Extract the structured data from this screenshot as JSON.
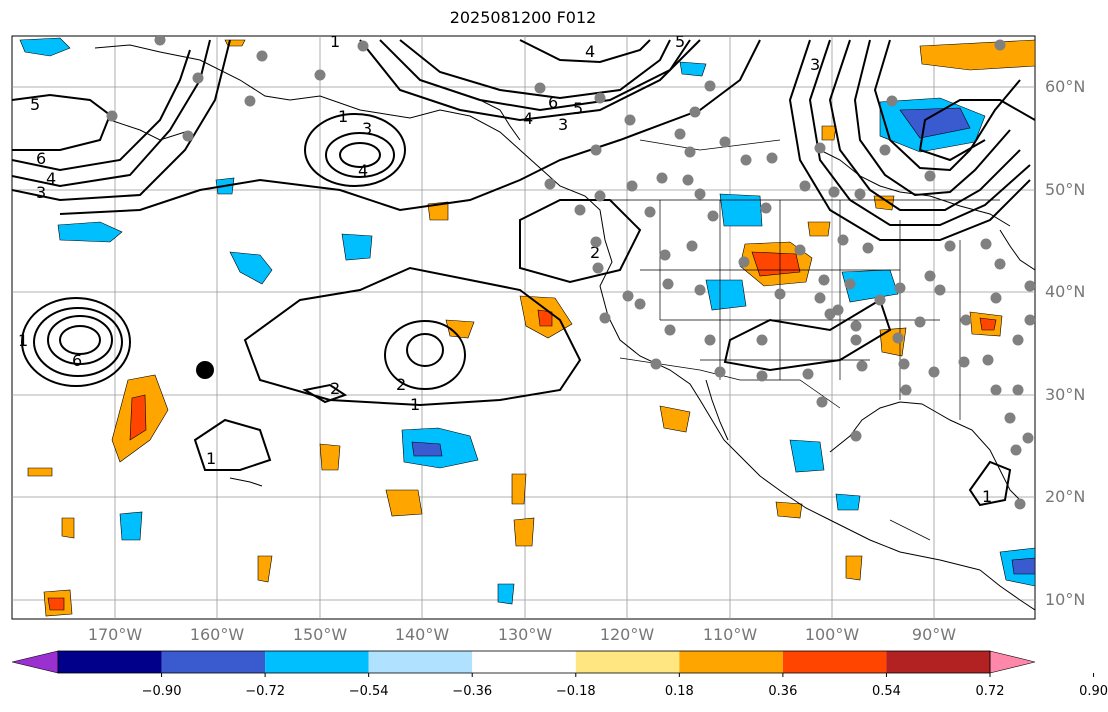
{
  "title": "2025081200 F012",
  "lat_labels": [
    "60°N",
    "50°N",
    "40°N",
    "30°N",
    "20°N",
    "10°N"
  ],
  "lon_labels": [
    "170°W",
    "160°W",
    "150°W",
    "140°W",
    "130°W",
    "120°W",
    "110°W",
    "100°W",
    "90°W"
  ],
  "colorbar": {
    "labels": [
      "−0.90",
      "−0.72",
      "−0.54",
      "−0.36",
      "−0.18",
      "0.18",
      "0.36",
      "0.54",
      "0.72",
      "0.90"
    ],
    "colors": [
      "#9b30d0",
      "#00008b",
      "#3a5bd0",
      "#00bfff",
      "#b0e2ff",
      "#ffffff",
      "#ffe680",
      "#ffa500",
      "#ff4500",
      "#b22222",
      "#ff88aa"
    ]
  },
  "contour_labels": [
    "1",
    "3",
    "4",
    "5",
    "6",
    "2"
  ],
  "colors": {
    "land_outline": "#000000",
    "grid": "#999999",
    "station": "#808080"
  }
}
